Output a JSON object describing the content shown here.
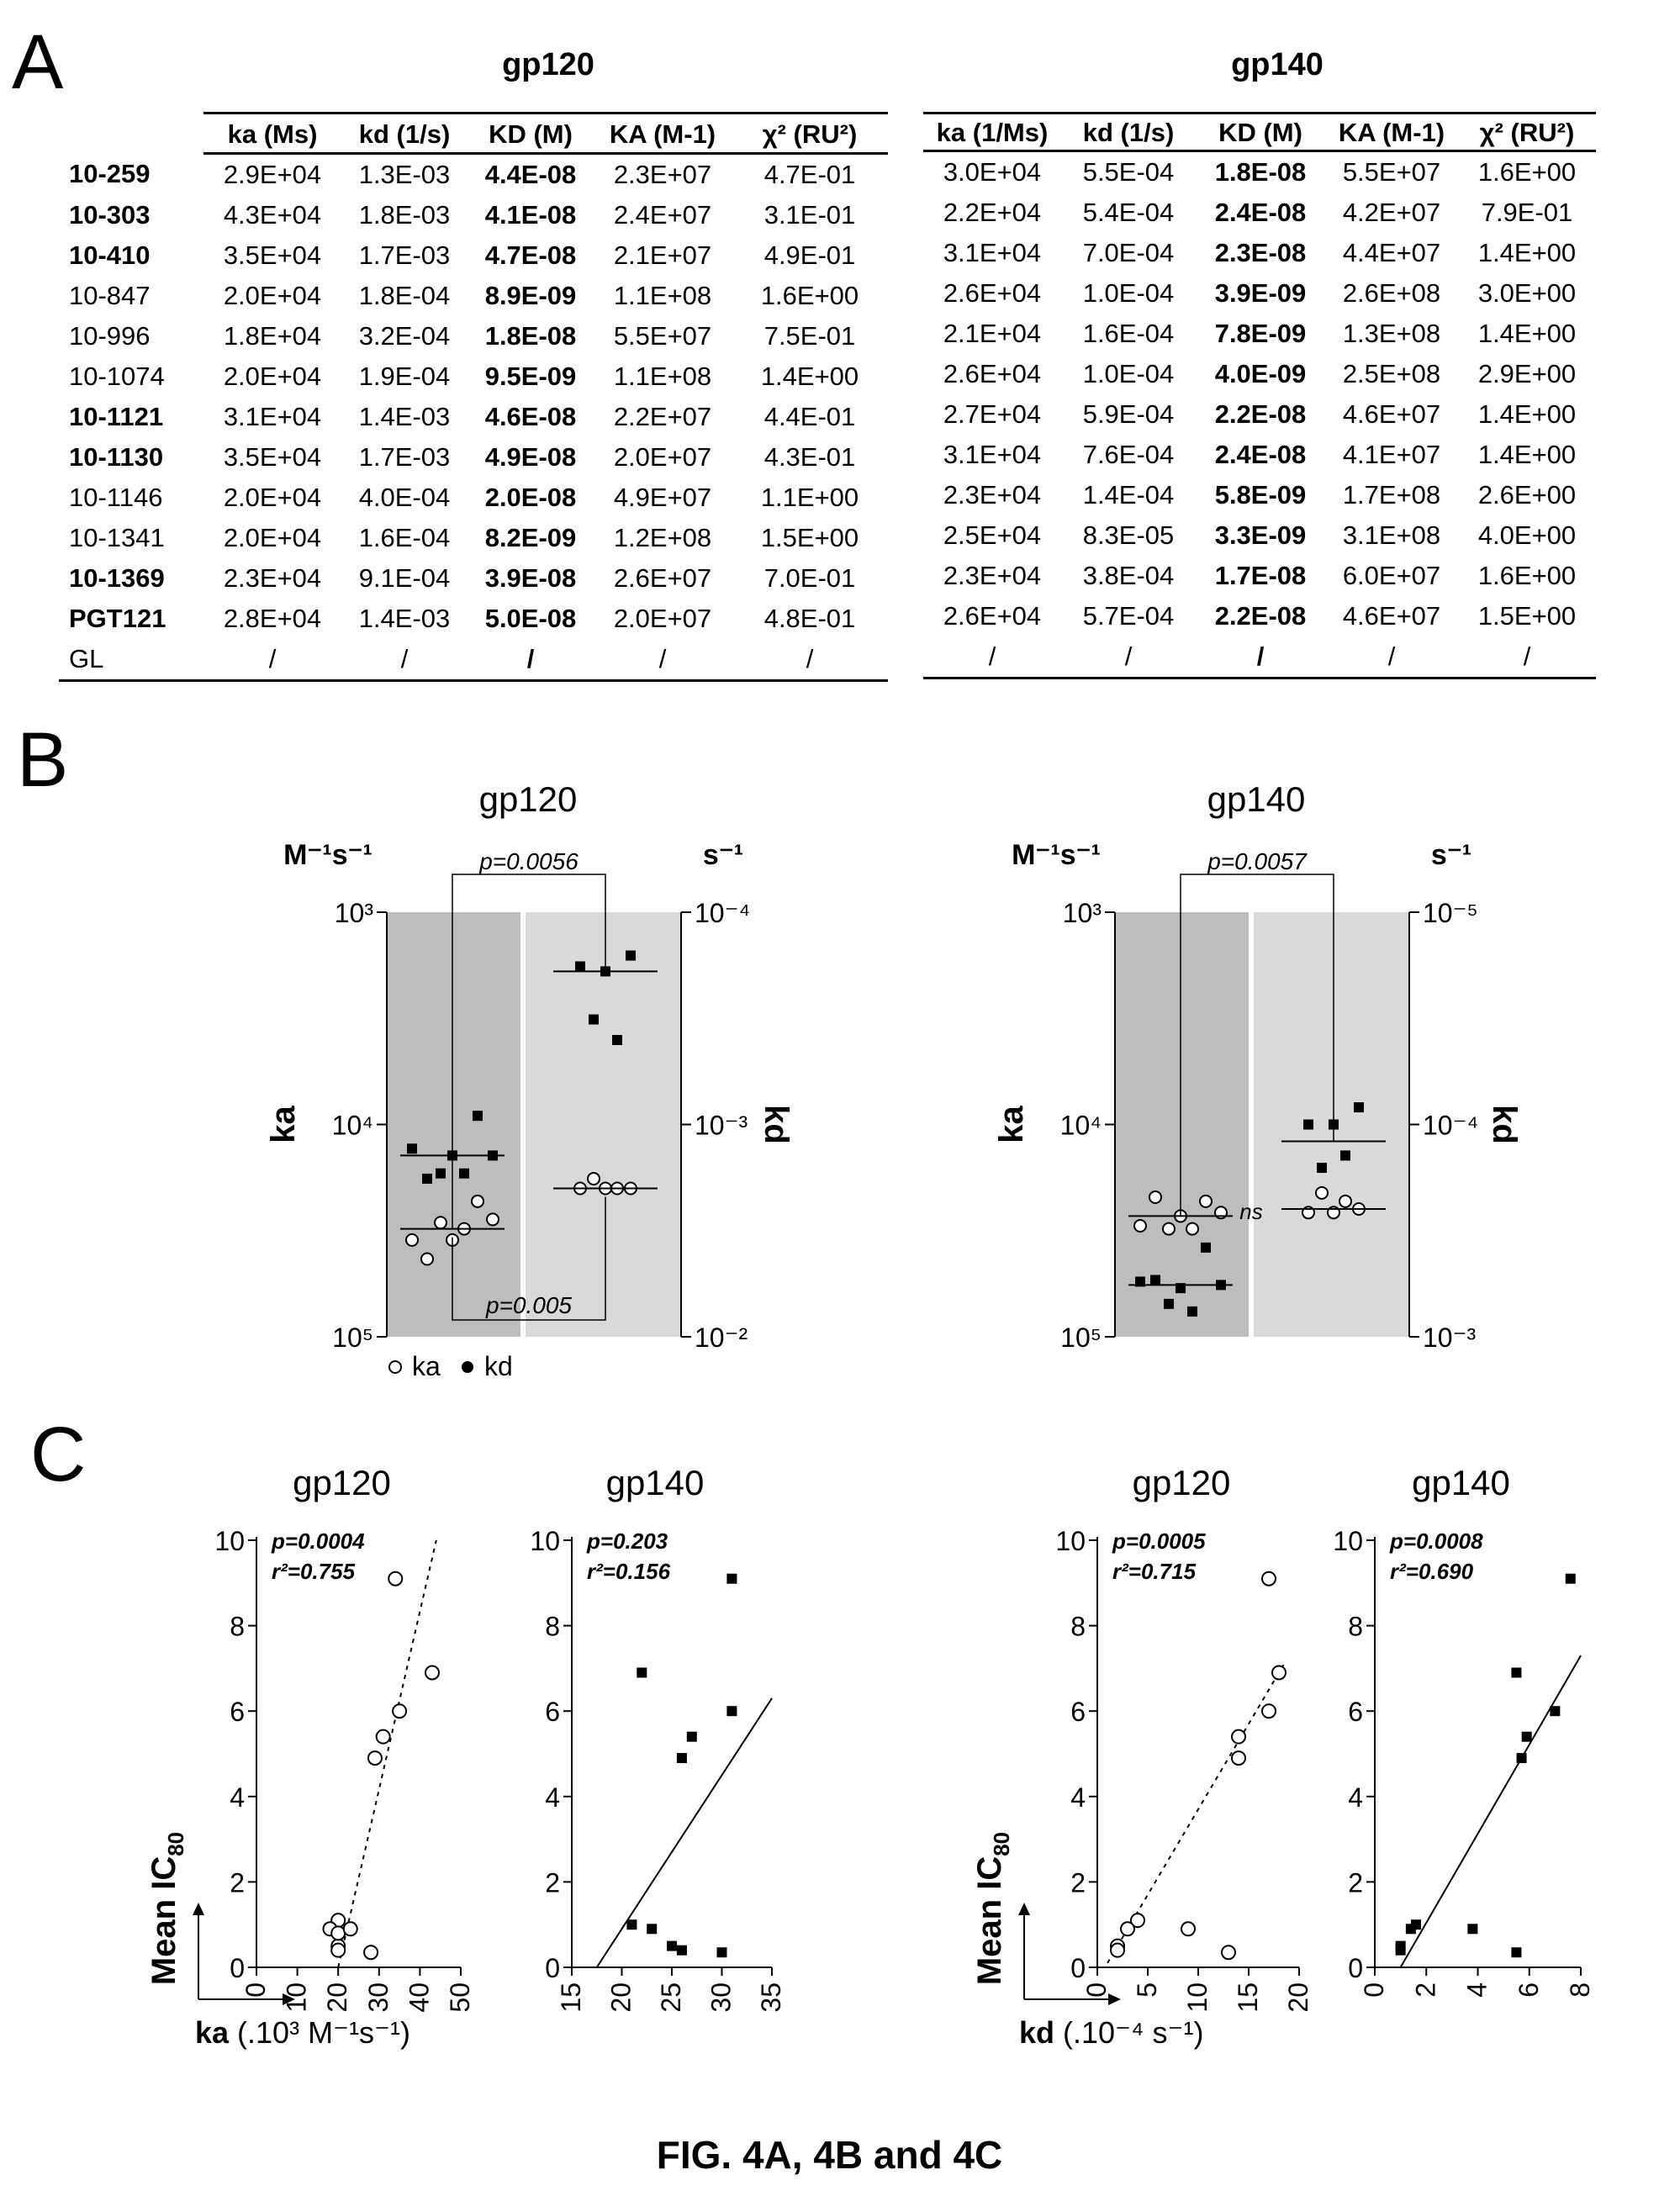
{
  "panel_a": {
    "letter": "A",
    "headers": {
      "gp120": [
        "ka (Ms)",
        "kd (1/s)",
        "KD (M)",
        "KA (M-1)",
        "χ² (RU²)"
      ],
      "gp140": [
        "ka (1/Ms)",
        "kd (1/s)",
        "KD (M)",
        "KA (M-1)",
        "χ² (RU²)"
      ]
    },
    "titles": {
      "gp120": "gp120",
      "gp140": "gp140"
    },
    "rows": [
      {
        "name": "10-259",
        "bold": true,
        "gp120": [
          "2.9E+04",
          "1.3E-03",
          "4.4E-08",
          "2.3E+07",
          "4.7E-01"
        ],
        "gp140": [
          "3.0E+04",
          "5.5E-04",
          "1.8E-08",
          "5.5E+07",
          "1.6E+00"
        ]
      },
      {
        "name": "10-303",
        "bold": true,
        "gp120": [
          "4.3E+04",
          "1.8E-03",
          "4.1E-08",
          "2.4E+07",
          "3.1E-01"
        ],
        "gp140": [
          "2.2E+04",
          "5.4E-04",
          "2.4E-08",
          "4.2E+07",
          "7.9E-01"
        ]
      },
      {
        "name": "10-410",
        "bold": true,
        "gp120": [
          "3.5E+04",
          "1.7E-03",
          "4.7E-08",
          "2.1E+07",
          "4.9E-01"
        ],
        "gp140": [
          "3.1E+04",
          "7.0E-04",
          "2.3E-08",
          "4.4E+07",
          "1.4E+00"
        ]
      },
      {
        "name": "10-847",
        "bold": false,
        "gp120": [
          "2.0E+04",
          "1.8E-04",
          "8.9E-09",
          "1.1E+08",
          "1.6E+00"
        ],
        "gp140": [
          "2.6E+04",
          "1.0E-04",
          "3.9E-09",
          "2.6E+08",
          "3.0E+00"
        ]
      },
      {
        "name": "10-996",
        "bold": false,
        "gp120": [
          "1.8E+04",
          "3.2E-04",
          "1.8E-08",
          "5.5E+07",
          "7.5E-01"
        ],
        "gp140": [
          "2.1E+04",
          "1.6E-04",
          "7.8E-09",
          "1.3E+08",
          "1.4E+00"
        ]
      },
      {
        "name": "10-1074",
        "bold": false,
        "gp120": [
          "2.0E+04",
          "1.9E-04",
          "9.5E-09",
          "1.1E+08",
          "1.4E+00"
        ],
        "gp140": [
          "2.6E+04",
          "1.0E-04",
          "4.0E-09",
          "2.5E+08",
          "2.9E+00"
        ]
      },
      {
        "name": "10-1121",
        "bold": true,
        "gp120": [
          "3.1E+04",
          "1.4E-03",
          "4.6E-08",
          "2.2E+07",
          "4.4E-01"
        ],
        "gp140": [
          "2.7E+04",
          "5.9E-04",
          "2.2E-08",
          "4.6E+07",
          "1.4E+00"
        ]
      },
      {
        "name": "10-1130",
        "bold": true,
        "gp120": [
          "3.5E+04",
          "1.7E-03",
          "4.9E-08",
          "2.0E+07",
          "4.3E-01"
        ],
        "gp140": [
          "3.1E+04",
          "7.6E-04",
          "2.4E-08",
          "4.1E+07",
          "1.4E+00"
        ]
      },
      {
        "name": "10-1146",
        "bold": false,
        "gp120": [
          "2.0E+04",
          "4.0E-04",
          "2.0E-08",
          "4.9E+07",
          "1.1E+00"
        ],
        "gp140": [
          "2.3E+04",
          "1.4E-04",
          "5.8E-09",
          "1.7E+08",
          "2.6E+00"
        ]
      },
      {
        "name": "10-1341",
        "bold": false,
        "gp120": [
          "2.0E+04",
          "1.6E-04",
          "8.2E-09",
          "1.2E+08",
          "1.5E+00"
        ],
        "gp140": [
          "2.5E+04",
          "8.3E-05",
          "3.3E-09",
          "3.1E+08",
          "4.0E+00"
        ]
      },
      {
        "name": "10-1369",
        "bold": true,
        "gp120": [
          "2.3E+04",
          "9.1E-04",
          "3.9E-08",
          "2.6E+07",
          "7.0E-01"
        ],
        "gp140": [
          "2.3E+04",
          "3.8E-04",
          "1.7E-08",
          "6.0E+07",
          "1.6E+00"
        ]
      },
      {
        "name": "PGT121",
        "bold": true,
        "gp120": [
          "2.8E+04",
          "1.4E-03",
          "5.0E-08",
          "2.0E+07",
          "4.8E-01"
        ],
        "gp140": [
          "2.6E+04",
          "5.7E-04",
          "2.2E-08",
          "4.6E+07",
          "1.5E+00"
        ]
      },
      {
        "name": "GL",
        "bold": false,
        "gp120": [
          "/",
          "/",
          "/",
          "/",
          "/"
        ],
        "gp140": [
          "/",
          "/",
          "/",
          "/",
          "/"
        ]
      }
    ]
  },
  "panel_b": {
    "letter": "B",
    "legend_ka": "ka",
    "legend_kd": "kd",
    "chart_data": [
      {
        "type": "scatter",
        "title": "gp120",
        "left_unit": "M⁻¹s⁻¹",
        "right_unit": "s⁻¹",
        "left_label": "ka",
        "right_label": "kd",
        "left_ticks": [
          "10³",
          "10⁴",
          "10⁵"
        ],
        "right_ticks": [
          "10⁻⁴",
          "10⁻³",
          "10⁻²"
        ],
        "left_axis": {
          "log": true,
          "top": 1000,
          "bottom": 100000
        },
        "right_axis": {
          "log": true,
          "top": 0.0001,
          "bottom": 0.01
        },
        "p_top": "p=0.0056",
        "p_bottom": "p=0.005",
        "ns": "",
        "groups": [
          {
            "column": "bold",
            "series": "ka",
            "values": [
              35000,
              43000,
              29000,
              35000,
              31000,
              23000,
              28000
            ],
            "median": 31000
          },
          {
            "column": "bold",
            "series": "kd",
            "values": [
              0.0013,
              0.0018,
              0.0017,
              0.0014,
              0.0017,
              0.00091,
              0.0014
            ],
            "median": 0.0014
          },
          {
            "column": "other",
            "series": "ka",
            "values": [
              20000,
              18000,
              20000,
              20000,
              20000
            ],
            "median": 20000
          },
          {
            "column": "other",
            "series": "kd",
            "values": [
              0.00018,
              0.00032,
              0.00019,
              0.0004,
              0.00016
            ],
            "median": 0.00019
          }
        ]
      },
      {
        "type": "scatter",
        "title": "gp140",
        "left_unit": "M⁻¹s⁻¹",
        "right_unit": "s⁻¹",
        "left_label": "ka",
        "right_label": "kd",
        "left_ticks": [
          "10³",
          "10⁴",
          "10⁵"
        ],
        "right_ticks": [
          "10⁻⁵",
          "10⁻⁴",
          "10⁻³"
        ],
        "left_axis": {
          "log": true,
          "top": 1000,
          "bottom": 100000
        },
        "right_axis": {
          "log": true,
          "top": 1e-05,
          "bottom": 0.001
        },
        "p_top": "p=0.0057",
        "p_bottom": "",
        "ns": "ns",
        "groups": [
          {
            "column": "bold",
            "series": "ka",
            "values": [
              30000,
              22000,
              31000,
              27000,
              31000,
              23000,
              26000
            ],
            "median": 27000
          },
          {
            "column": "bold",
            "series": "kd",
            "values": [
              0.00055,
              0.00054,
              0.0007,
              0.00059,
              0.00076,
              0.00038,
              0.00057
            ],
            "median": 0.00057
          },
          {
            "column": "other",
            "series": "ka",
            "values": [
              26000,
              21000,
              26000,
              23000,
              25000
            ],
            "median": 25000
          },
          {
            "column": "other",
            "series": "kd",
            "values": [
              0.0001,
              0.00016,
              0.0001,
              0.00014,
              8.3e-05
            ],
            "median": 0.00012
          }
        ]
      }
    ]
  },
  "panel_c": {
    "letter": "C",
    "ylabel_main": "Mean IC",
    "ylabel_sub": "80",
    "xlabel_left": {
      "bold": "ka",
      "rest": " (.10³ M⁻¹s⁻¹)"
    },
    "xlabel_right": {
      "bold": "kd",
      "rest": " (.10⁻⁴ s⁻¹)"
    },
    "chart_data": [
      {
        "type": "scatter",
        "title": "gp120",
        "marker": "open",
        "line": "dashed",
        "p": "p=0.0004",
        "r2": "r²=0.755",
        "xlim": [
          0,
          50
        ],
        "xticks": [
          0,
          10,
          20,
          30,
          40,
          50
        ],
        "ylim": [
          0,
          10
        ],
        "yticks": [
          0,
          2,
          4,
          6,
          8,
          10
        ],
        "x": [
          34,
          43,
          35,
          31,
          29,
          20,
          18,
          20,
          20,
          20,
          23,
          28
        ],
        "y": [
          9.1,
          6.9,
          6.0,
          5.4,
          4.9,
          1.1,
          0.9,
          0.5,
          0.4,
          0.8,
          0.9,
          0.35
        ],
        "fit": [
          [
            20,
            0
          ],
          [
            44,
            10
          ]
        ]
      },
      {
        "type": "scatter",
        "title": "gp140",
        "marker": "filled",
        "line": "solid",
        "p": "p=0.203",
        "r2": "r²=0.156",
        "xlim": [
          15,
          35
        ],
        "xticks": [
          15,
          20,
          25,
          30,
          35
        ],
        "ylim": [
          0,
          10
        ],
        "yticks": [
          0,
          2,
          4,
          6,
          8,
          10
        ],
        "x": [
          31,
          22,
          31,
          27,
          26,
          21,
          23,
          25,
          26,
          30
        ],
        "y": [
          9.1,
          6.9,
          6.0,
          5.4,
          4.9,
          1.0,
          0.9,
          0.5,
          0.4,
          0.35
        ],
        "fit": [
          [
            17.5,
            0
          ],
          [
            35,
            6.3
          ]
        ]
      },
      {
        "type": "scatter",
        "title": "gp120",
        "marker": "open",
        "line": "dashed",
        "p": "p=0.0005",
        "r2": "r²=0.715",
        "xlim": [
          0,
          20
        ],
        "xticks": [
          0,
          5,
          10,
          15,
          20
        ],
        "ylim": [
          0,
          10
        ],
        "yticks": [
          0,
          2,
          4,
          6,
          8,
          10
        ],
        "x": [
          17,
          18,
          17,
          14,
          14,
          4,
          3,
          2,
          2,
          9,
          13
        ],
        "y": [
          9.1,
          6.9,
          6.0,
          5.4,
          4.9,
          1.1,
          0.9,
          0.5,
          0.4,
          0.9,
          0.35
        ],
        "fit": [
          [
            1,
            0.1
          ],
          [
            18.5,
            7.1
          ]
        ]
      },
      {
        "type": "scatter",
        "title": "gp140",
        "marker": "filled",
        "line": "solid",
        "p": "p=0.0008",
        "r2": "r²=0.690",
        "xlim": [
          0,
          8
        ],
        "xticks": [
          0,
          2,
          4,
          6,
          8
        ],
        "ylim": [
          0,
          10
        ],
        "yticks": [
          0,
          2,
          4,
          6,
          8,
          10
        ],
        "x": [
          7.6,
          5.5,
          7.0,
          5.9,
          5.7,
          1.6,
          1.4,
          1.0,
          1.0,
          3.8,
          5.5
        ],
        "y": [
          9.1,
          6.9,
          6.0,
          5.4,
          4.9,
          1.0,
          0.9,
          0.5,
          0.4,
          0.9,
          0.35
        ],
        "fit": [
          [
            1,
            0
          ],
          [
            8,
            7.3
          ]
        ]
      }
    ]
  },
  "caption": "FIG. 4A, 4B and 4C"
}
